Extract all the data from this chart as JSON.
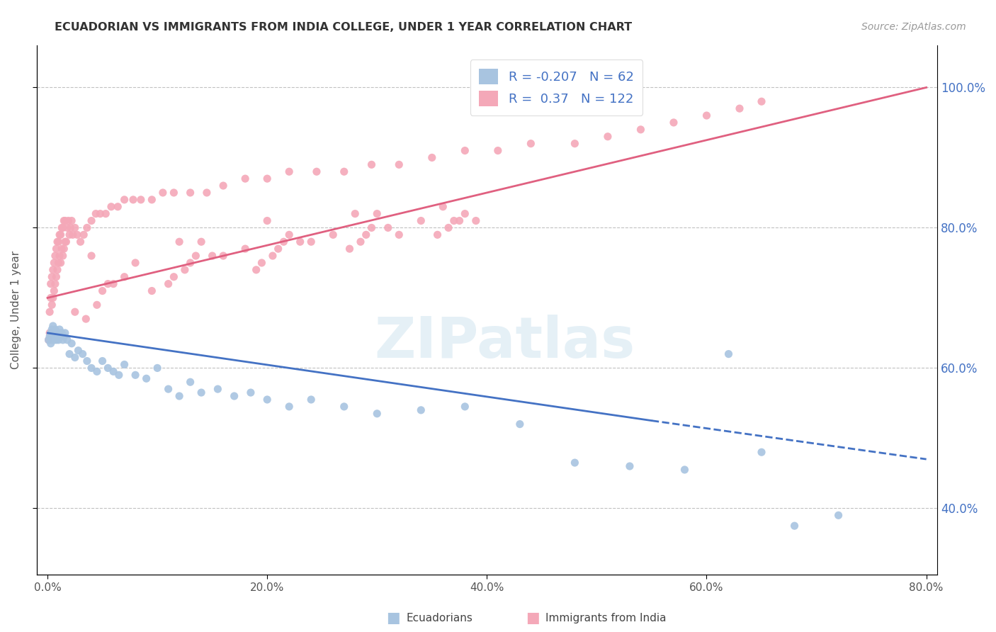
{
  "title": "ECUADORIAN VS IMMIGRANTS FROM INDIA COLLEGE, UNDER 1 YEAR CORRELATION CHART",
  "source": "Source: ZipAtlas.com",
  "ylabel": "College, Under 1 year",
  "legend_labels": [
    "Ecuadorians",
    "Immigrants from India"
  ],
  "blue_R": -0.207,
  "blue_N": 62,
  "pink_R": 0.37,
  "pink_N": 122,
  "blue_color": "#A8C4E0",
  "pink_color": "#F4A8B8",
  "blue_line_color": "#4472C4",
  "pink_line_color": "#E06080",
  "background_color": "#FFFFFF",
  "blue_scatter_x": [
    0.001,
    0.002,
    0.003,
    0.003,
    0.004,
    0.004,
    0.005,
    0.005,
    0.006,
    0.006,
    0.007,
    0.007,
    0.008,
    0.008,
    0.009,
    0.01,
    0.01,
    0.011,
    0.012,
    0.013,
    0.014,
    0.015,
    0.016,
    0.018,
    0.02,
    0.022,
    0.025,
    0.028,
    0.032,
    0.036,
    0.04,
    0.045,
    0.05,
    0.055,
    0.06,
    0.065,
    0.07,
    0.08,
    0.09,
    0.1,
    0.11,
    0.12,
    0.13,
    0.14,
    0.155,
    0.17,
    0.185,
    0.2,
    0.22,
    0.24,
    0.27,
    0.3,
    0.34,
    0.38,
    0.43,
    0.48,
    0.53,
    0.58,
    0.62,
    0.65,
    0.68,
    0.72
  ],
  "blue_scatter_y": [
    0.64,
    0.645,
    0.65,
    0.635,
    0.64,
    0.655,
    0.645,
    0.66,
    0.65,
    0.64,
    0.645,
    0.655,
    0.65,
    0.64,
    0.645,
    0.64,
    0.65,
    0.655,
    0.645,
    0.65,
    0.64,
    0.645,
    0.65,
    0.64,
    0.62,
    0.635,
    0.615,
    0.625,
    0.62,
    0.61,
    0.6,
    0.595,
    0.61,
    0.6,
    0.595,
    0.59,
    0.605,
    0.59,
    0.585,
    0.6,
    0.57,
    0.56,
    0.58,
    0.565,
    0.57,
    0.56,
    0.565,
    0.555,
    0.545,
    0.555,
    0.545,
    0.535,
    0.54,
    0.545,
    0.52,
    0.465,
    0.46,
    0.455,
    0.62,
    0.48,
    0.375,
    0.39
  ],
  "pink_scatter_x": [
    0.001,
    0.002,
    0.002,
    0.003,
    0.003,
    0.004,
    0.004,
    0.005,
    0.005,
    0.006,
    0.006,
    0.007,
    0.007,
    0.008,
    0.008,
    0.009,
    0.009,
    0.01,
    0.01,
    0.011,
    0.011,
    0.012,
    0.012,
    0.013,
    0.013,
    0.014,
    0.014,
    0.015,
    0.015,
    0.016,
    0.016,
    0.017,
    0.018,
    0.019,
    0.02,
    0.021,
    0.022,
    0.023,
    0.025,
    0.027,
    0.03,
    0.033,
    0.036,
    0.04,
    0.044,
    0.048,
    0.053,
    0.058,
    0.064,
    0.07,
    0.078,
    0.085,
    0.095,
    0.105,
    0.115,
    0.13,
    0.145,
    0.16,
    0.18,
    0.2,
    0.22,
    0.245,
    0.27,
    0.295,
    0.32,
    0.35,
    0.38,
    0.41,
    0.44,
    0.48,
    0.51,
    0.54,
    0.57,
    0.6,
    0.63,
    0.65,
    0.095,
    0.18,
    0.26,
    0.34,
    0.04,
    0.12,
    0.2,
    0.28,
    0.36,
    0.06,
    0.14,
    0.22,
    0.3,
    0.38,
    0.08,
    0.16,
    0.24,
    0.32,
    0.055,
    0.135,
    0.215,
    0.295,
    0.375,
    0.025,
    0.07,
    0.15,
    0.23,
    0.31,
    0.39,
    0.05,
    0.13,
    0.21,
    0.29,
    0.37,
    0.045,
    0.125,
    0.205,
    0.285,
    0.365,
    0.035,
    0.115,
    0.195,
    0.275,
    0.355,
    0.11,
    0.19
  ],
  "pink_scatter_y": [
    0.64,
    0.65,
    0.68,
    0.7,
    0.72,
    0.69,
    0.73,
    0.7,
    0.74,
    0.71,
    0.75,
    0.72,
    0.76,
    0.73,
    0.77,
    0.74,
    0.78,
    0.75,
    0.78,
    0.76,
    0.79,
    0.75,
    0.79,
    0.77,
    0.8,
    0.76,
    0.8,
    0.77,
    0.81,
    0.78,
    0.81,
    0.78,
    0.8,
    0.81,
    0.79,
    0.8,
    0.81,
    0.79,
    0.8,
    0.79,
    0.78,
    0.79,
    0.8,
    0.81,
    0.82,
    0.82,
    0.82,
    0.83,
    0.83,
    0.84,
    0.84,
    0.84,
    0.84,
    0.85,
    0.85,
    0.85,
    0.85,
    0.86,
    0.87,
    0.87,
    0.88,
    0.88,
    0.88,
    0.89,
    0.89,
    0.9,
    0.91,
    0.91,
    0.92,
    0.92,
    0.93,
    0.94,
    0.95,
    0.96,
    0.97,
    0.98,
    0.71,
    0.77,
    0.79,
    0.81,
    0.76,
    0.78,
    0.81,
    0.82,
    0.83,
    0.72,
    0.78,
    0.79,
    0.82,
    0.82,
    0.75,
    0.76,
    0.78,
    0.79,
    0.72,
    0.76,
    0.78,
    0.8,
    0.81,
    0.68,
    0.73,
    0.76,
    0.78,
    0.8,
    0.81,
    0.71,
    0.75,
    0.77,
    0.79,
    0.81,
    0.69,
    0.74,
    0.76,
    0.78,
    0.8,
    0.67,
    0.73,
    0.75,
    0.77,
    0.79,
    0.72,
    0.74
  ],
  "xlim": [
    -0.01,
    0.81
  ],
  "ylim": [
    0.305,
    1.06
  ],
  "yticks": [
    0.4,
    0.6,
    0.8,
    1.0
  ],
  "xticks": [
    0.0,
    0.2,
    0.4,
    0.6,
    0.8
  ],
  "blue_line_x0": 0.0,
  "blue_line_x1": 0.55,
  "blue_line_x2": 0.8,
  "blue_line_y0": 0.65,
  "blue_line_y1": 0.525,
  "blue_line_y2": 0.47,
  "pink_line_x0": 0.0,
  "pink_line_x1": 0.8,
  "pink_line_y0": 0.7,
  "pink_line_y1": 1.0
}
